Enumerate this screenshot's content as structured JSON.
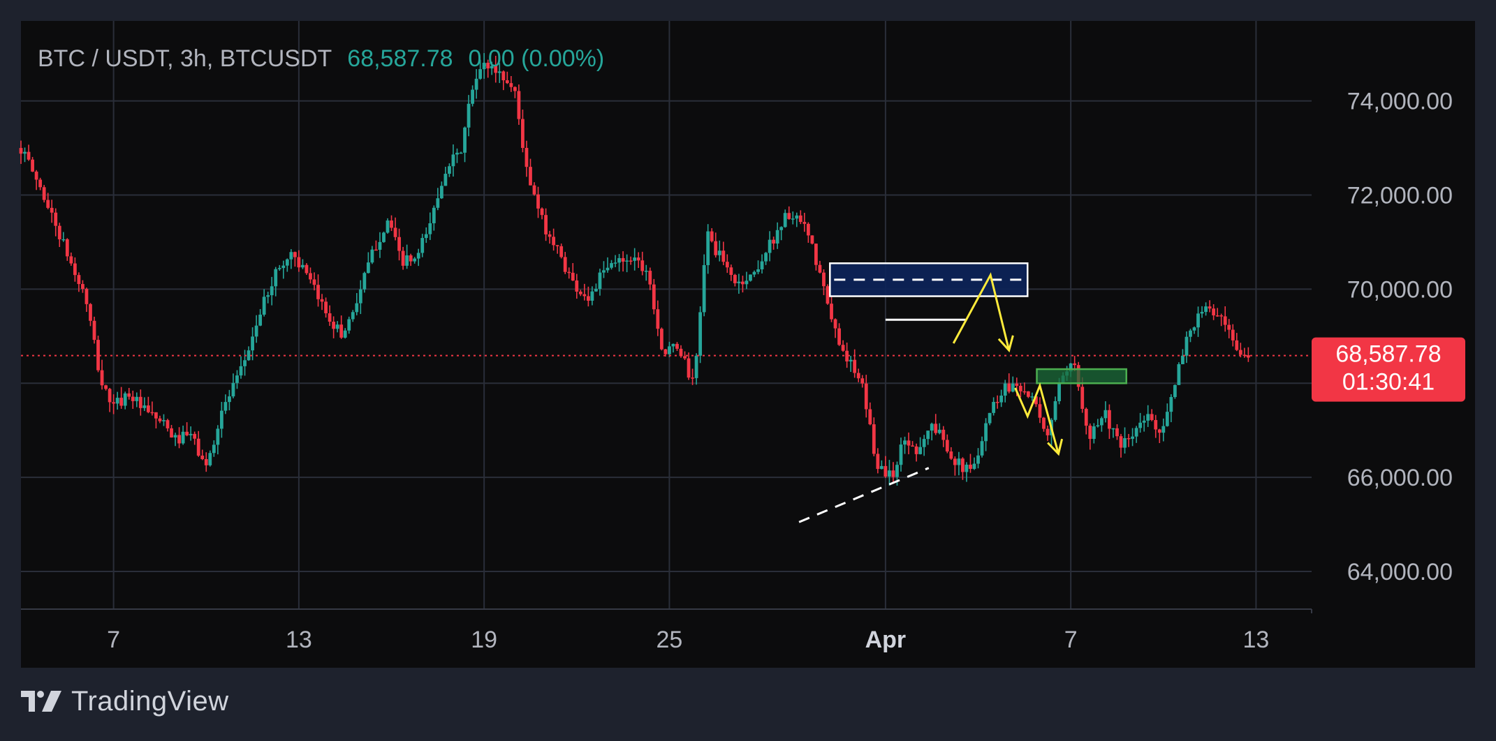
{
  "legend": {
    "symbol": "BTC / USDT, 3h, BTCUSDT",
    "last_price": "68,587.78",
    "change": "0.00 (0.00%)"
  },
  "price_tag": {
    "price": "68,587.78",
    "countdown": "01:30:41"
  },
  "brand": {
    "name": "TradingView"
  },
  "colors": {
    "background": "#0c0c0d",
    "frame": "#1e222d",
    "up": "#26a69a",
    "down": "#f23645",
    "grid": "#2a2e39",
    "axis_text": "#b2b5be",
    "annotation_yellow": "#ffeb3b",
    "zone_blue": "#0d2459",
    "zone_green": "#1b6b3a"
  },
  "chart_data": {
    "type": "candlestick",
    "interval": "3h",
    "symbol": "BTCUSDT",
    "y_axis": {
      "range": [
        63200,
        75700
      ],
      "ticks": [
        64000,
        66000,
        68000,
        70000,
        72000,
        74000
      ],
      "tick_labels": [
        "64,000.00",
        "66,000.00",
        "68,000.00",
        "70,000.00",
        "72,000.00",
        "74,000.00"
      ]
    },
    "x_axis": {
      "range_days": [
        4.0,
        45.8
      ],
      "ticks": [
        {
          "day": 7,
          "label": "7",
          "bold": false
        },
        {
          "day": 13,
          "label": "13",
          "bold": false
        },
        {
          "day": 19,
          "label": "19",
          "bold": false
        },
        {
          "day": 25,
          "label": "25",
          "bold": false
        },
        {
          "day": 32,
          "label": "Apr",
          "bold": true
        },
        {
          "day": 38,
          "label": "7",
          "bold": false
        },
        {
          "day": 44,
          "label": "13",
          "bold": false
        }
      ]
    },
    "grid": true,
    "last_price": 68587.78,
    "close_path": [
      [
        4.0,
        73000
      ],
      [
        4.3,
        72600
      ],
      [
        4.6,
        72200
      ],
      [
        5.1,
        71400
      ],
      [
        5.7,
        70400
      ],
      [
        6.1,
        69800
      ],
      [
        6.6,
        68000
      ],
      [
        7.0,
        67500
      ],
      [
        7.5,
        67800
      ],
      [
        8.0,
        67400
      ],
      [
        8.5,
        67200
      ],
      [
        9.0,
        66800
      ],
      [
        9.5,
        66900
      ],
      [
        10.0,
        66200
      ],
      [
        10.5,
        67400
      ],
      [
        11.1,
        68200
      ],
      [
        11.7,
        69400
      ],
      [
        12.2,
        70300
      ],
      [
        12.8,
        70800
      ],
      [
        13.3,
        70200
      ],
      [
        13.9,
        69500
      ],
      [
        14.4,
        69000
      ],
      [
        14.9,
        69800
      ],
      [
        15.4,
        70800
      ],
      [
        15.9,
        71500
      ],
      [
        16.3,
        70600
      ],
      [
        16.8,
        70600
      ],
      [
        17.3,
        71500
      ],
      [
        17.8,
        72700
      ],
      [
        18.2,
        72800
      ],
      [
        18.6,
        74200
      ],
      [
        19.0,
        74800
      ],
      [
        19.5,
        74600
      ],
      [
        20.0,
        74200
      ],
      [
        20.4,
        72400
      ],
      [
        20.9,
        71400
      ],
      [
        21.4,
        70800
      ],
      [
        21.9,
        70100
      ],
      [
        22.4,
        69800
      ],
      [
        22.8,
        70300
      ],
      [
        23.3,
        70600
      ],
      [
        23.8,
        70700
      ],
      [
        24.3,
        70400
      ],
      [
        24.8,
        68600
      ],
      [
        25.3,
        68800
      ],
      [
        25.8,
        67900
      ],
      [
        26.2,
        71200
      ],
      [
        26.7,
        70600
      ],
      [
        27.2,
        70100
      ],
      [
        27.7,
        70300
      ],
      [
        28.3,
        71000
      ],
      [
        28.8,
        71600
      ],
      [
        29.4,
        71300
      ],
      [
        29.8,
        70500
      ],
      [
        30.3,
        69200
      ],
      [
        30.8,
        68500
      ],
      [
        31.3,
        67800
      ],
      [
        31.7,
        66300
      ],
      [
        32.2,
        66000
      ],
      [
        32.6,
        66800
      ],
      [
        33.0,
        66600
      ],
      [
        33.5,
        67100
      ],
      [
        33.9,
        66800
      ],
      [
        34.3,
        66300
      ],
      [
        34.8,
        66100
      ],
      [
        35.3,
        67300
      ],
      [
        35.8,
        67900
      ],
      [
        36.3,
        68000
      ],
      [
        36.8,
        67600
      ],
      [
        37.2,
        66800
      ],
      [
        37.6,
        67900
      ],
      [
        38.1,
        68400
      ],
      [
        38.6,
        66900
      ],
      [
        39.1,
        67400
      ],
      [
        39.6,
        66600
      ],
      [
        40.0,
        66900
      ],
      [
        40.5,
        67300
      ],
      [
        40.9,
        67000
      ],
      [
        41.3,
        67700
      ],
      [
        41.7,
        68900
      ],
      [
        42.1,
        69400
      ],
      [
        42.5,
        69600
      ],
      [
        43.0,
        69200
      ],
      [
        43.4,
        68600
      ],
      [
        43.8,
        68588
      ]
    ],
    "annotations": {
      "resistance_zone": {
        "from_day": 30.2,
        "to_day": 36.6,
        "low": 69850,
        "high": 70550,
        "midline": 70200
      },
      "support_zone": {
        "from_day": 36.9,
        "to_day": 39.8,
        "low": 68000,
        "high": 68300
      },
      "prior_high_line": {
        "from_day": 32.0,
        "to_day": 34.6,
        "price": 69350
      },
      "ascending_trendline": [
        [
          29.2,
          65050
        ],
        [
          33.4,
          66200
        ]
      ],
      "projection_a": [
        [
          34.2,
          68850
        ],
        [
          35.4,
          70300
        ],
        [
          36.0,
          68700
        ]
      ],
      "projection_b": [
        [
          36.2,
          67900
        ],
        [
          36.6,
          67300
        ],
        [
          37.0,
          67950
        ],
        [
          37.6,
          66500
        ]
      ]
    }
  }
}
